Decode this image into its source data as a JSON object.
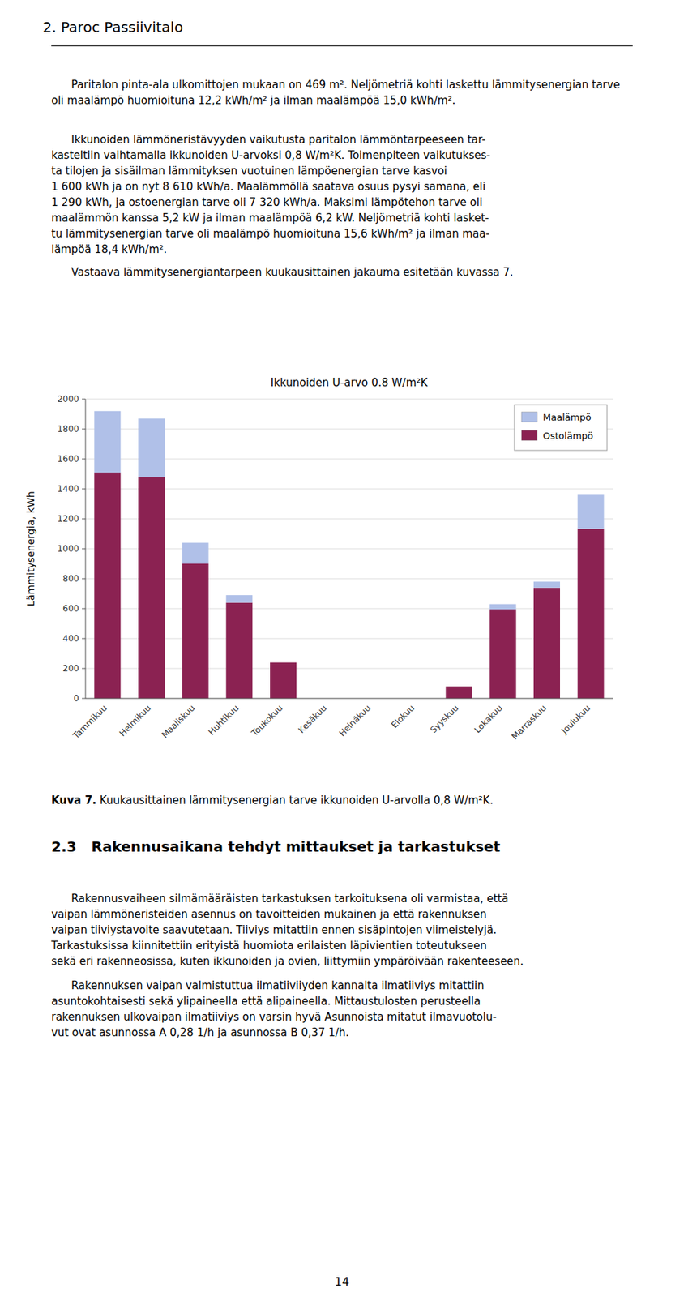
{
  "page_title": "2. Paroc Passiivitalo",
  "para1": "Paritalon pinta-ala ulkomittojen mukaan on 469 m². Neljömetriä kohti laskettu lämmitysenergian tarve oli maalämpö huomioituna 12,2 kWh/m² ja ilman maalämpöä 15,0 kWh/m².",
  "para2": [
    "Ikkunoiden lämmöneristävyyden vaikutusta paritalon lämmöntarpeeseen tar-",
    "kasteltiin vaihtamalla ikkunoiden U-arvoksi 0,8 W/m²K. Toimenpiteen vaikutukses-",
    "ta tilojen ja sisäilman lämmityksen vuotuinen lämpöenergian tarve kasvoi",
    "1 600 kWh ja on nyt 8 610 kWh/a. Maalämmöllä saatava osuus pysyi samana, eli",
    "1 290 kWh, ja ostoenergian tarve oli 7 320 kWh/a. Maksimi lämpötehon tarve oli",
    "maalämmön kanssa 5,2 kW ja ilman maalämpöä 6,2 kW. Neljömetriä kohti lasket-",
    "tu lämmitysenergian tarve oli maalämpö huomioituna 15,6 kWh/m² ja ilman maa-",
    "lämpöä 18,4 kWh/m²."
  ],
  "para3": "Vastaava lämmitysenergiantarpeen kuukausittainen jakauma esitetään kuvassa 7.",
  "chart_data": {
    "type": "bar",
    "stacked": true,
    "title": "Ikkunoiden U-arvo 0.8 W/m²K",
    "ylabel": "Lämmitysenergia, kWh",
    "categories": [
      "Tammikuu",
      "Helmikuu",
      "Maaliskuu",
      "Huhtikuu",
      "Toukokuu",
      "Kesäkuu",
      "Heinäkuu",
      "Elokuu",
      "Syyskuu",
      "Lokakuu",
      "Marraskuu",
      "Joulukuu"
    ],
    "series": [
      {
        "name": "Ostolämpö",
        "color": "#8B2252",
        "values": [
          1510,
          1480,
          900,
          640,
          240,
          0,
          0,
          0,
          80,
          595,
          740,
          1135
        ]
      },
      {
        "name": "Maalämpö",
        "color": "#B0C0E8",
        "values": [
          410,
          390,
          140,
          50,
          0,
          0,
          0,
          0,
          0,
          35,
          40,
          225
        ]
      }
    ],
    "ylim": [
      0,
      2000
    ],
    "yticks": [
      0,
      200,
      400,
      600,
      800,
      1000,
      1200,
      1400,
      1600,
      1800,
      2000
    ],
    "grid": true,
    "legend": "upper right"
  },
  "caption_bold": "Kuva 7.",
  "caption_rest": " Kuukausittainen lämmitysenergian tarve ikkunoiden U-arvolla 0,8 W/m²K.",
  "section_title": "2.3   Rakennusaikana tehdyt mittaukset ja tarkastukset",
  "sec_para1": [
    "Rakennusvaiheen silmämääräisten tarkastuksen tarkoituksena oli varmistaa, että",
    "vaipan lämmöneristeiden asennus on tavoitteiden mukainen ja että rakennuksen",
    "vaipan tiiviystavoite saavutetaan. Tiiviys mitattiin ennen sisäpintojen viimeistelyjä.",
    "Tarkastuksissa kiinnitettiin erityistä huomiota erilaisten läpivientien toteutukseen",
    "sekä eri rakenneosissa, kuten ikkunoiden ja ovien, liittymiin ympäröivään rakenteeseen."
  ],
  "sec_para2": [
    "Rakennuksen vaipan valmistuttua ilmatiiviiyden kannalta ilmatiiviys mitattiin",
    "asuntokohtaisesti sekä ylipaineella että alipaineella. Mittaustulosten perusteella",
    "rakennuksen ulkovaipan ilmatiiviys on varsin hyvä Asunnoista mitatut ilmavuotolu-",
    "vut ovat asunnossa A 0,28 1/h ja asunnossa B 0,37 1/h."
  ],
  "page_number": "14"
}
